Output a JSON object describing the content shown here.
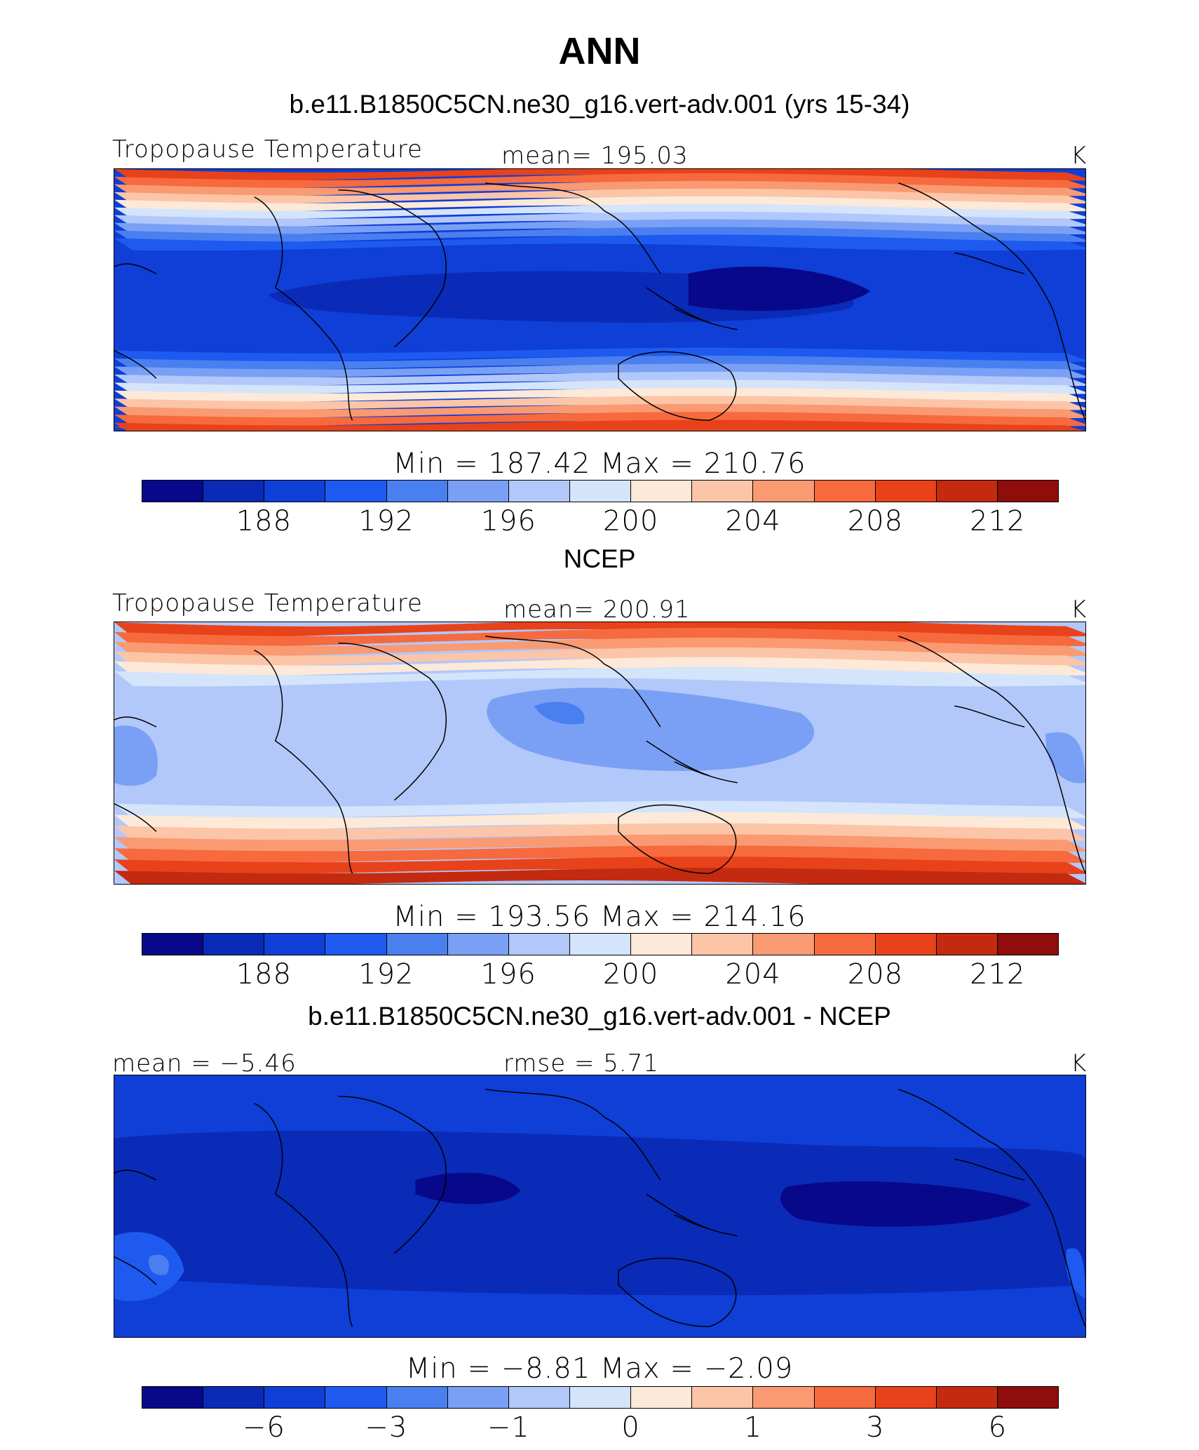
{
  "title": "ANN",
  "colorbar_colors": [
    "#08088a",
    "#0a2ab8",
    "#0f3fd6",
    "#1e5af0",
    "#4a7ff0",
    "#7aa0f5",
    "#b2c8fa",
    "#d4e4fb",
    "#fde9d8",
    "#fcc5a8",
    "#f99a72",
    "#f66a3e",
    "#e8421a",
    "#c42a10",
    "#8f0d0a"
  ],
  "panels": [
    {
      "title": "b.e11.B1850C5CN.ne30_g16.vert-adv.001 (yrs 15-34)",
      "left_label": "Tropopause Temperature",
      "center_label": "mean= 195.03",
      "right_label": "K",
      "minmax": "Min = 187.42 Max = 210.76",
      "ticks": [
        "188",
        "192",
        "196",
        "200",
        "204",
        "208",
        "212"
      ],
      "pattern": "model"
    },
    {
      "title": "NCEP",
      "left_label": "Tropopause Temperature",
      "center_label": "mean= 200.91",
      "right_label": "K",
      "minmax": "Min = 193.56 Max = 214.16",
      "ticks": [
        "188",
        "192",
        "196",
        "200",
        "204",
        "208",
        "212"
      ],
      "pattern": "obs"
    },
    {
      "title": "b.e11.B1850C5CN.ne30_g16.vert-adv.001 - NCEP",
      "left_label": "mean =  −5.46",
      "center_label": "rmse =     5.71",
      "right_label": "K",
      "minmax": "Min =  −8.81 Max =  −2.09",
      "ticks": [
        "−6",
        "−3",
        "−1",
        "0",
        "1",
        "3",
        "6"
      ],
      "pattern": "diff"
    }
  ]
}
